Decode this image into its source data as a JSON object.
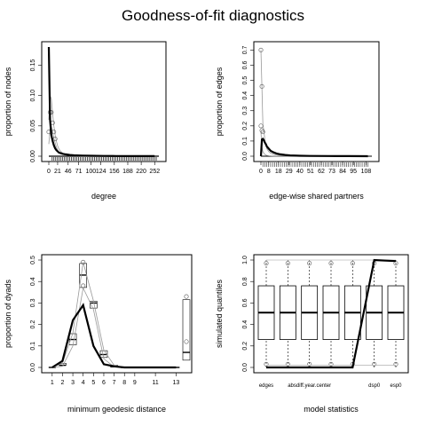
{
  "title": "Goodness-of-fit diagnostics",
  "chart_data": [
    {
      "type": "line",
      "panel": "degree",
      "xlabel": "degree",
      "ylabel": "proportion of nodes",
      "xlim": [
        0,
        262
      ],
      "ylim": [
        0,
        0.18
      ],
      "x_ticks": [
        "0",
        "21",
        "46",
        "71",
        "100",
        "124",
        "156",
        "188",
        "220",
        "252"
      ],
      "y_ticks": [
        "0.00",
        "0.05",
        "0.10",
        "0.15"
      ],
      "x": [
        0,
        3,
        6,
        9,
        12,
        15,
        18,
        21,
        24,
        28,
        33,
        40,
        50,
        60,
        80,
        100,
        130,
        160,
        200,
        252
      ],
      "series": [
        {
          "role": "observed",
          "values": [
            0.18,
            0.06,
            0.035,
            0.025,
            0.018,
            0.013,
            0.01,
            0.008,
            0.006,
            0.005,
            0.004,
            0.003,
            0.002,
            0.0015,
            0.001,
            0.0008,
            0.0005,
            0.0003,
            0.0002,
            0.0001
          ]
        },
        {
          "role": "sim_upper",
          "values": [
            0.06,
            0.1,
            0.095,
            0.07,
            0.05,
            0.035,
            0.025,
            0.017,
            0.012,
            0.008,
            0.005,
            0.003,
            0.002,
            0.0012,
            0.0008,
            0.0005,
            0.0003,
            0.0002,
            0.0001,
            0.0001
          ]
        },
        {
          "role": "sim_lower",
          "values": [
            0.02,
            0.045,
            0.05,
            0.04,
            0.03,
            0.022,
            0.015,
            0.01,
            0.007,
            0.005,
            0.003,
            0.002,
            0.001,
            0.0008,
            0.0005,
            0.0003,
            0.0002,
            0.0001,
            0.0001,
            0.0
          ]
        }
      ]
    },
    {
      "type": "line",
      "panel": "espart",
      "xlabel": "edge-wise shared partners",
      "ylabel": "proportion of edges",
      "xlim": [
        0,
        114
      ],
      "ylim": [
        0,
        0.72
      ],
      "x_ticks": [
        "0",
        "8",
        "18",
        "29",
        "40",
        "51",
        "62",
        "73",
        "84",
        "95",
        "108"
      ],
      "y_ticks": [
        "0.0",
        "0.1",
        "0.2",
        "0.3",
        "0.4",
        "0.5",
        "0.6",
        "0.7"
      ],
      "x": [
        0,
        1,
        2,
        3,
        4,
        5,
        6,
        8,
        10,
        13,
        16,
        20,
        25,
        30,
        40,
        50,
        70,
        90,
        110
      ],
      "series": [
        {
          "role": "observed",
          "values": [
            0.0,
            0.11,
            0.115,
            0.105,
            0.09,
            0.08,
            0.065,
            0.05,
            0.035,
            0.025,
            0.018,
            0.012,
            0.008,
            0.005,
            0.003,
            0.002,
            0.001,
            0.0005,
            0.0002
          ]
        },
        {
          "role": "sim_upper",
          "values": [
            0.7,
            0.46,
            0.21,
            0.17,
            0.11,
            0.08,
            0.05,
            0.03,
            0.02,
            0.012,
            0.008,
            0.005,
            0.003,
            0.002,
            0.001,
            0.0005,
            0.0003,
            0.0001,
            0.0
          ]
        },
        {
          "role": "sim_lower",
          "values": [
            0.16,
            0.06,
            0.03,
            0.02,
            0.012,
            0.008,
            0.005,
            0.003,
            0.002,
            0.001,
            0.0005,
            0.0003,
            0.0002,
            0.0001,
            0.0,
            0.0,
            0.0,
            0.0,
            0.0
          ]
        }
      ]
    },
    {
      "type": "line",
      "panel": "distance",
      "xlabel": "minimum geodesic distance",
      "ylabel": "proportion of dyads",
      "xlim": [
        0.5,
        14
      ],
      "ylim": [
        0,
        0.5
      ],
      "x_ticks": [
        "1",
        "2",
        "3",
        "4",
        "5",
        "6",
        "7",
        "8",
        "9",
        "11",
        "13"
      ],
      "y_ticks": [
        "0.0",
        "0.1",
        "0.2",
        "0.3",
        "0.4",
        "0.5"
      ],
      "categories": [
        1,
        2,
        3,
        4,
        5,
        6,
        7,
        8,
        9,
        10,
        11,
        12,
        13,
        14
      ],
      "series": [
        {
          "role": "observed",
          "values": [
            0.0,
            0.03,
            0.22,
            0.29,
            0.1,
            0.015,
            0.005,
            0.0,
            0.0,
            0.0,
            0.0,
            0.0,
            0.0,
            null
          ]
        },
        {
          "role": "sim_upper",
          "values": [
            0.0,
            0.02,
            0.16,
            0.49,
            0.31,
            0.08,
            0.01,
            0.0,
            0.0,
            0.0,
            0.0,
            0.0,
            0.0,
            0.33
          ]
        },
        {
          "role": "sim_lower",
          "values": [
            0.0,
            0.005,
            0.1,
            0.37,
            0.27,
            0.04,
            0.003,
            0.0,
            0.0,
            0.0,
            0.0,
            0.0,
            0.0,
            0.04
          ]
        },
        {
          "role": "box_median",
          "values": [
            0.0,
            0.01,
            0.13,
            0.43,
            0.3,
            0.06,
            0.005,
            0.0,
            0.0,
            0.0,
            0.0,
            0.0,
            0.0,
            0.07
          ]
        }
      ]
    },
    {
      "type": "box",
      "panel": "model",
      "xlabel": "model statistics",
      "ylabel": "simulated quantiles",
      "ylim": [
        0,
        1
      ],
      "y_ticks": [
        "0.0",
        "0.2",
        "0.4",
        "0.6",
        "0.8",
        "1.0"
      ],
      "categories": [
        "edges",
        "absdiff.year.center",
        "dsp0",
        "esp0"
      ],
      "category_labels": [
        "edges",
        "",
        "absdiff.year.center",
        "",
        "",
        "dsp0",
        "esp0"
      ],
      "boxes": [
        {
          "q1": 0.26,
          "median": 0.51,
          "q3": 0.76
        },
        {
          "q1": 0.26,
          "median": 0.51,
          "q3": 0.76
        },
        {
          "q1": 0.26,
          "median": 0.51,
          "q3": 0.76
        },
        {
          "q1": 0.26,
          "median": 0.51,
          "q3": 0.76
        },
        {
          "q1": 0.26,
          "median": 0.51,
          "q3": 0.76
        },
        {
          "q1": 0.26,
          "median": 0.51,
          "q3": 0.76
        },
        {
          "q1": 0.26,
          "median": 0.51,
          "q3": 0.76
        }
      ],
      "observed": [
        0.0,
        0.0,
        0.0,
        0.0,
        0.0,
        1.0,
        0.99
      ]
    }
  ]
}
